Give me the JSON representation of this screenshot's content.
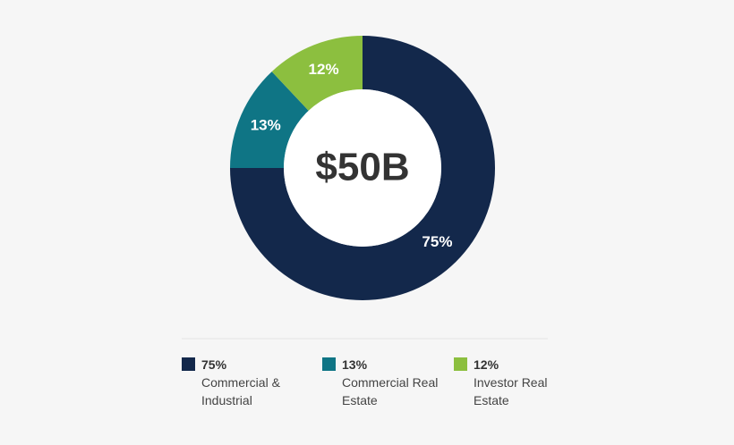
{
  "chart_data": {
    "type": "pie",
    "donut": true,
    "center_label": "$50B",
    "categories": [
      "Commercial & Industrial",
      "Commercial Real Estate",
      "Investor Real Estate"
    ],
    "values": [
      75,
      13,
      12
    ],
    "value_labels": [
      "75%",
      "13%",
      "12%"
    ],
    "colors": [
      "#13284b",
      "#0f7585",
      "#8cbf3f"
    ]
  }
}
